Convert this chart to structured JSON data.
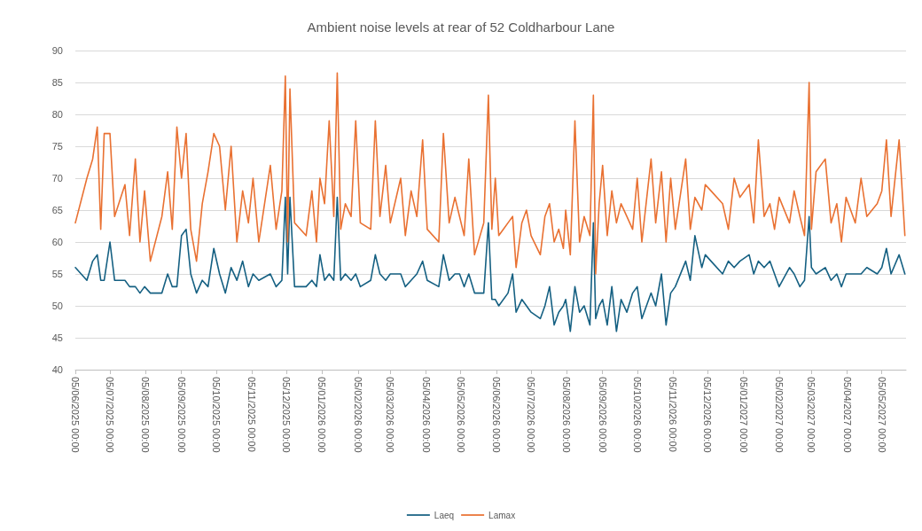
{
  "chart_data": {
    "type": "line",
    "title": "Ambient noise levels at rear of 52 Coldharbour Lane",
    "x": [
      "2025-06-05",
      "2025-06-15",
      "2025-06-20",
      "2025-06-24",
      "2025-06-27",
      "2025-06-30",
      "2025-07-05",
      "2025-07-09",
      "2025-07-18",
      "2025-07-22",
      "2025-07-27",
      "2025-07-31",
      "2025-08-04",
      "2025-08-09",
      "2025-08-19",
      "2025-08-24",
      "2025-08-28",
      "2025-09-01",
      "2025-09-05",
      "2025-09-09",
      "2025-09-13",
      "2025-09-18",
      "2025-09-23",
      "2025-09-28",
      "2025-10-03",
      "2025-10-08",
      "2025-10-13",
      "2025-10-18",
      "2025-10-23",
      "2025-10-28",
      "2025-11-02",
      "2025-11-06",
      "2025-11-11",
      "2025-11-21",
      "2025-11-26",
      "2025-12-01",
      "2025-12-04",
      "2025-12-06",
      "2025-12-08",
      "2025-12-12",
      "2025-12-22",
      "2025-12-27",
      "2025-12-31",
      "2026-01-03",
      "2026-01-07",
      "2026-01-11",
      "2026-01-15",
      "2026-01-18",
      "2026-01-21",
      "2026-01-25",
      "2026-01-30",
      "2026-02-03",
      "2026-02-07",
      "2026-02-16",
      "2026-02-20",
      "2026-02-24",
      "2026-03-01",
      "2026-03-05",
      "2026-03-14",
      "2026-03-18",
      "2026-03-23",
      "2026-03-28",
      "2026-04-02",
      "2026-04-06",
      "2026-04-16",
      "2026-04-20",
      "2026-04-25",
      "2026-04-30",
      "2026-05-04",
      "2026-05-08",
      "2026-05-12",
      "2026-05-17",
      "2026-05-25",
      "2026-05-29",
      "2026-06-01",
      "2026-06-04",
      "2026-06-07",
      "2026-06-15",
      "2026-06-19",
      "2026-06-22",
      "2026-06-27",
      "2026-07-01",
      "2026-07-05",
      "2026-07-13",
      "2026-07-17",
      "2026-07-21",
      "2026-07-25",
      "2026-07-29",
      "2026-08-02",
      "2026-08-04",
      "2026-08-08",
      "2026-08-12",
      "2026-08-16",
      "2026-08-20",
      "2026-08-25",
      "2026-08-28",
      "2026-08-30",
      "2026-09-02",
      "2026-09-05",
      "2026-09-09",
      "2026-09-13",
      "2026-09-17",
      "2026-09-21",
      "2026-09-26",
      "2026-10-01",
      "2026-10-05",
      "2026-10-09",
      "2026-10-17",
      "2026-10-21",
      "2026-10-26",
      "2026-10-30",
      "2026-11-03",
      "2026-11-07",
      "2026-11-16",
      "2026-11-20",
      "2026-11-24",
      "2026-11-30",
      "2026-12-03",
      "2026-12-08",
      "2026-12-18",
      "2026-12-23",
      "2026-12-28",
      "2027-01-02",
      "2027-01-10",
      "2027-01-14",
      "2027-01-18",
      "2027-01-23",
      "2027-01-28",
      "2027-02-01",
      "2027-02-05",
      "2027-02-14",
      "2027-02-18",
      "2027-02-23",
      "2027-02-27",
      "2027-03-03",
      "2027-03-05",
      "2027-03-09",
      "2027-03-17",
      "2027-03-22",
      "2027-03-27",
      "2027-03-31",
      "2027-04-04",
      "2027-04-12",
      "2027-04-17",
      "2027-04-22",
      "2027-05-01",
      "2027-05-05",
      "2027-05-09",
      "2027-05-13",
      "2027-05-20",
      "2027-05-25"
    ],
    "series": [
      {
        "name": "Laeq",
        "color": "#156082",
        "values": [
          56,
          54,
          57,
          58,
          54,
          54,
          60,
          54,
          54,
          53,
          53,
          52,
          53,
          52,
          52,
          55,
          53,
          53,
          61,
          62,
          55,
          52,
          54,
          53,
          59,
          55,
          52,
          56,
          54,
          57,
          53,
          55,
          54,
          55,
          53,
          54,
          67,
          55,
          67,
          53,
          53,
          54,
          53,
          58,
          54,
          55,
          54,
          67,
          54,
          55,
          54,
          55,
          53,
          54,
          58,
          55,
          54,
          55,
          55,
          53,
          54,
          55,
          57,
          54,
          53,
          58,
          54,
          55,
          55,
          53,
          55,
          52,
          52,
          63,
          51,
          51,
          50,
          52,
          55,
          49,
          51,
          50,
          49,
          48,
          50,
          53,
          47,
          49,
          50,
          51,
          46,
          53,
          49,
          50,
          47,
          63,
          48,
          50,
          51,
          47,
          53,
          46,
          51,
          49,
          52,
          53,
          48,
          52,
          50,
          55,
          47,
          52,
          53,
          57,
          54,
          61,
          56,
          58,
          57,
          55,
          57,
          56,
          57,
          58,
          55,
          57,
          56,
          57,
          55,
          53,
          56,
          55,
          53,
          54,
          64,
          56,
          55,
          56,
          54,
          55,
          53,
          55,
          55,
          55,
          56,
          55,
          56,
          59,
          55,
          58,
          55
        ]
      },
      {
        "name": "Lamax",
        "color": "#e97132",
        "values": [
          63,
          70,
          73,
          78,
          62,
          77,
          77,
          64,
          69,
          61,
          73,
          60,
          68,
          57,
          64,
          71,
          62,
          78,
          70,
          77,
          62,
          57,
          66,
          71,
          77,
          75,
          65,
          75,
          60,
          68,
          63,
          70,
          60,
          72,
          62,
          68,
          86,
          60,
          84,
          63,
          61,
          68,
          60,
          70,
          66,
          79,
          64,
          86.5,
          62,
          66,
          64,
          79,
          63,
          62,
          79,
          64,
          72,
          63,
          70,
          61,
          68,
          64,
          76,
          62,
          60,
          77,
          63,
          67,
          64,
          61,
          73,
          58,
          63,
          83,
          62,
          70,
          61,
          63,
          64,
          56,
          63,
          65,
          61,
          58,
          64,
          66,
          60,
          62,
          59,
          65,
          58,
          79,
          60,
          64,
          61,
          83,
          55,
          66,
          72,
          61,
          68,
          63,
          66,
          64,
          62,
          70,
          60,
          73,
          63,
          71,
          60,
          70,
          62,
          73,
          62,
          67,
          65,
          69,
          68,
          66,
          62,
          70,
          67,
          69,
          63,
          76,
          64,
          66,
          62,
          67,
          63,
          68,
          64,
          61,
          85,
          62,
          71,
          73,
          63,
          66,
          60,
          67,
          63,
          70,
          64,
          66,
          68,
          76,
          64,
          76,
          61
        ]
      }
    ],
    "xlim": [
      "2025-06-05",
      "2027-05-26"
    ],
    "xticks": [
      {
        "value": "2025-06-05",
        "label": "05/06/2025 00:00"
      },
      {
        "value": "2025-07-05",
        "label": "05/07/2025 00:00"
      },
      {
        "value": "2025-08-05",
        "label": "05/08/2025 00:00"
      },
      {
        "value": "2025-09-05",
        "label": "05/09/2025 00:00"
      },
      {
        "value": "2025-10-05",
        "label": "05/10/2025 00:00"
      },
      {
        "value": "2025-11-05",
        "label": "05/11/2025 00:00"
      },
      {
        "value": "2025-12-05",
        "label": "05/12/2025 00:00"
      },
      {
        "value": "2026-01-05",
        "label": "05/01/2026 00:00"
      },
      {
        "value": "2026-02-05",
        "label": "05/02/2026 00:00"
      },
      {
        "value": "2026-03-05",
        "label": "05/03/2026 00:00"
      },
      {
        "value": "2026-04-05",
        "label": "05/04/2026 00:00"
      },
      {
        "value": "2026-05-05",
        "label": "05/05/2026 00:00"
      },
      {
        "value": "2026-06-05",
        "label": "05/06/2026 00:00"
      },
      {
        "value": "2026-07-05",
        "label": "05/07/2026 00:00"
      },
      {
        "value": "2026-08-05",
        "label": "05/08/2026 00:00"
      },
      {
        "value": "2026-09-05",
        "label": "05/09/2026 00:00"
      },
      {
        "value": "2026-10-05",
        "label": "05/10/2026 00:00"
      },
      {
        "value": "2026-11-05",
        "label": "05/11/2026 00:00"
      },
      {
        "value": "2026-12-05",
        "label": "05/12/2026 00:00"
      },
      {
        "value": "2027-01-05",
        "label": "05/01/2027 00:00"
      },
      {
        "value": "2027-02-05",
        "label": "05/02/2027 00:00"
      },
      {
        "value": "2027-03-05",
        "label": "05/03/2027 00:00"
      },
      {
        "value": "2027-04-05",
        "label": "05/04/2027 00:00"
      },
      {
        "value": "2027-05-05",
        "label": "05/05/2027 00:00"
      }
    ],
    "ylim": [
      40,
      90
    ],
    "yticks": [
      40,
      45,
      50,
      55,
      60,
      65,
      70,
      75,
      80,
      85,
      90
    ],
    "grid": "y",
    "legend": "bottom",
    "marker": "none",
    "line_style": "solid"
  }
}
